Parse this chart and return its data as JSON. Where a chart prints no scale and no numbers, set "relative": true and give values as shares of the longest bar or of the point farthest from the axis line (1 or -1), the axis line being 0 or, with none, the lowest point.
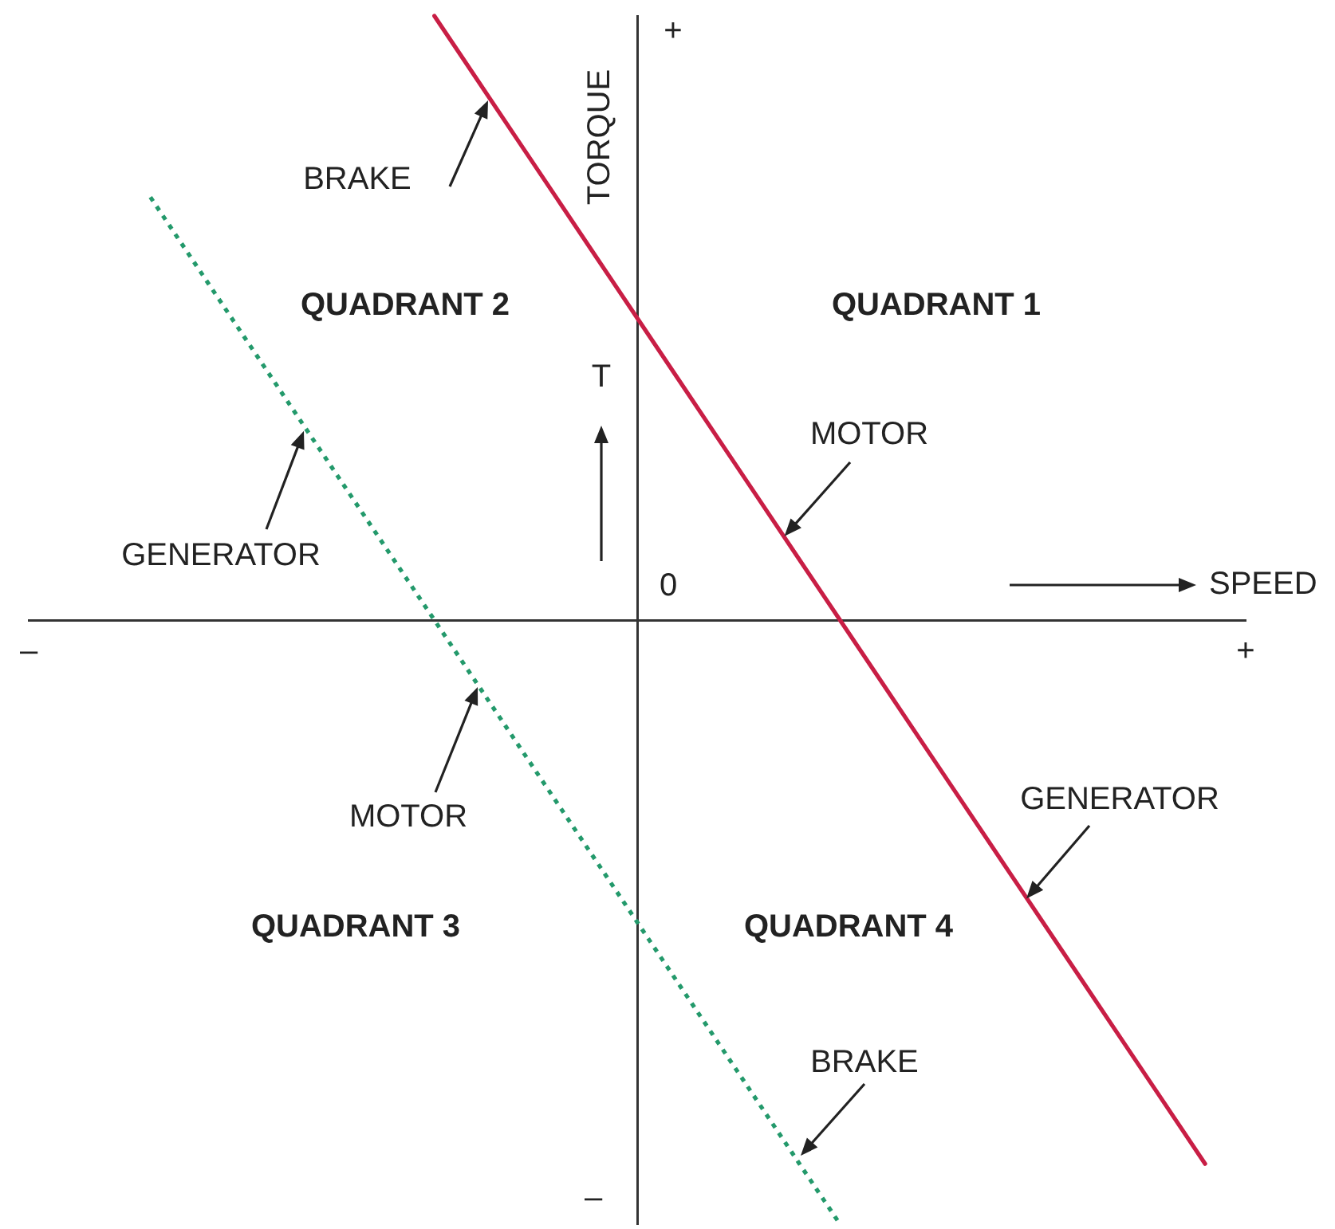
{
  "chart_data": {
    "type": "line",
    "relative": true,
    "xlabel": "SPEED",
    "ylabel": "TORQUE",
    "legend": false,
    "categories": [
      "–",
      null,
      null,
      null,
      null,
      null,
      null,
      null,
      null,
      null,
      null,
      null,
      null,
      null,
      null,
      null,
      null,
      null,
      null,
      null,
      null,
      null,
      null,
      null,
      null,
      null,
      null,
      null,
      null,
      null,
      "+"
    ],
    "series": [
      {
        "color": "#c81e45",
        "line_style": "solid",
        "values": [
          null,
          null,
          null,
          null,
          null,
          null,
          null,
          null,
          null,
          null,
          1,
          0.9,
          0.8,
          0.7,
          0.6,
          0.5,
          0.4,
          0.3,
          0.2,
          0.1,
          0,
          -0.1,
          -0.2,
          -0.3,
          -0.4,
          -0.5,
          -0.6,
          -0.7,
          -0.8,
          -0.9,
          null
        ]
      },
      {
        "color": "#23996b",
        "line_style": "dotted",
        "values": [
          null,
          null,
          null,
          0.7,
          0.6,
          0.5,
          0.4,
          0.3,
          0.2,
          0.1,
          0,
          -0.1,
          -0.2,
          -0.3,
          -0.4,
          -0.5,
          -0.6,
          -0.7,
          -0.8,
          -0.9,
          -1,
          null,
          null,
          null,
          null,
          null,
          null,
          null,
          null,
          null,
          null
        ]
      }
    ],
    "annotations": [
      "+",
      "BRAKE",
      "QUADRANT 2",
      "QUADRANT 1",
      "T",
      "MOTOR",
      "GENERATOR",
      "0",
      "GENERATOR",
      "MOTOR",
      "QUADRANT 3",
      "QUADRANT 4",
      "BRAKE",
      "–"
    ]
  }
}
